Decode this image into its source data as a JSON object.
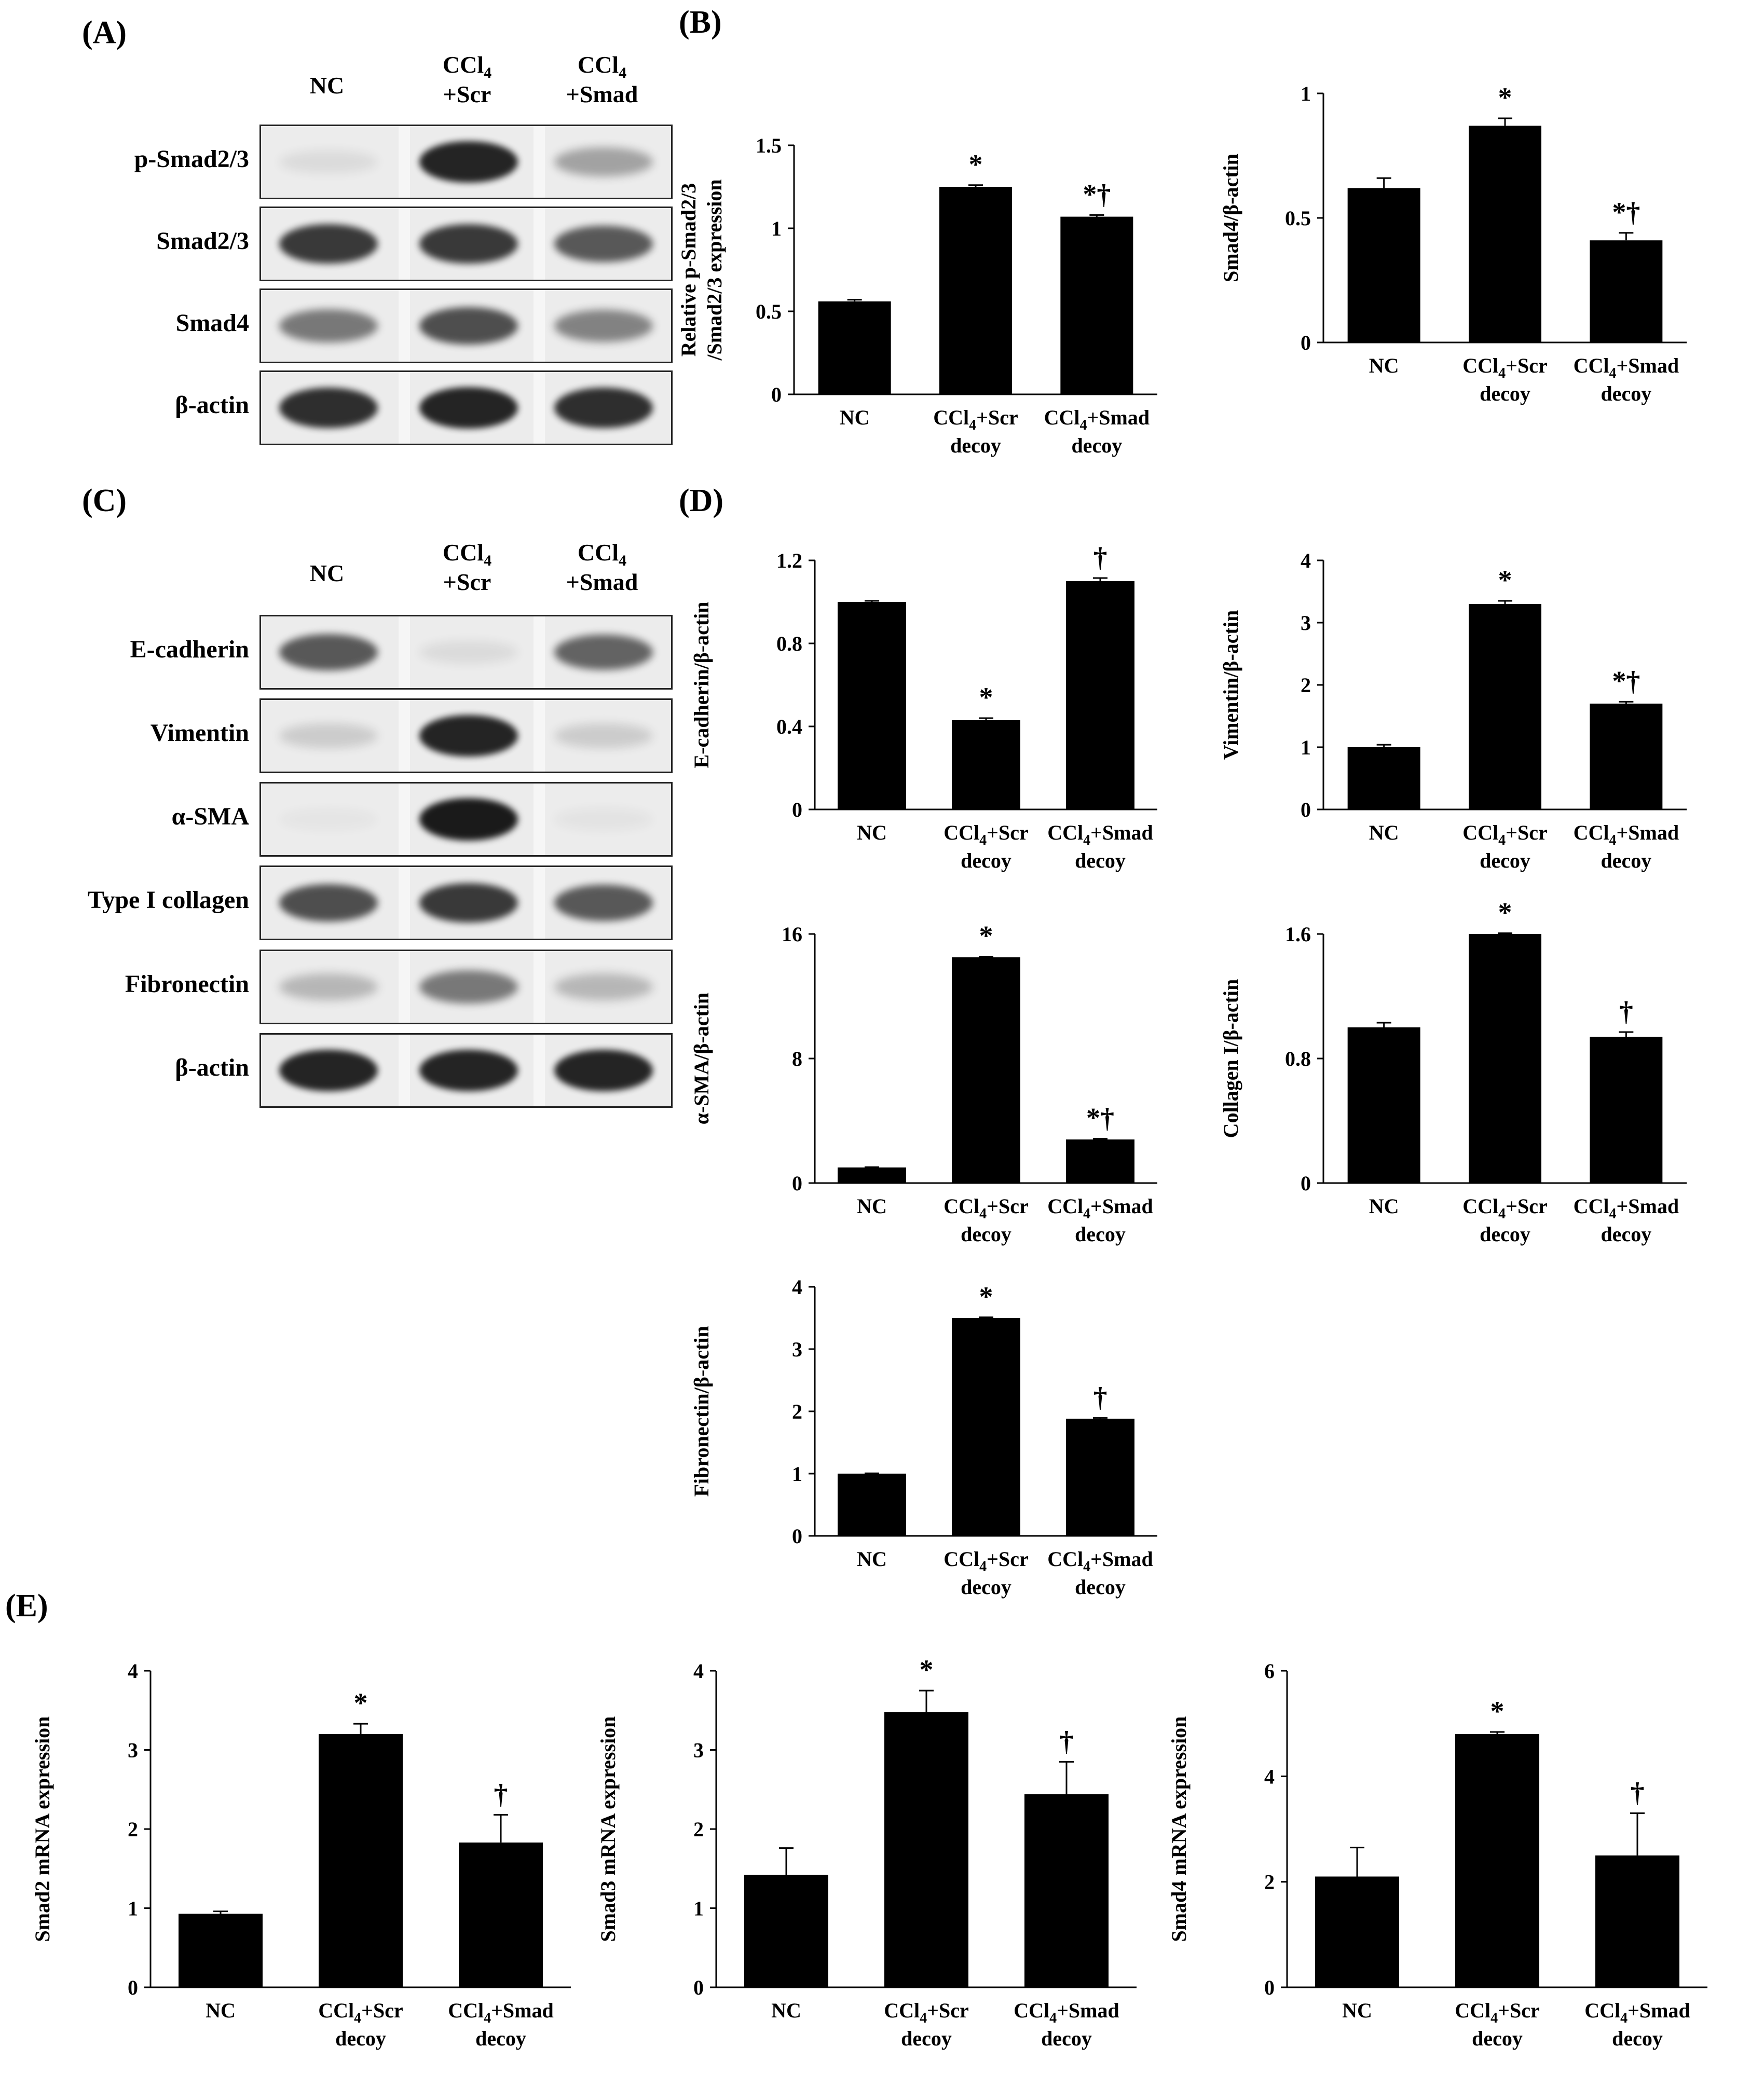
{
  "panels": {
    "A": "(A)",
    "B": "(B)",
    "C": "(C)",
    "D": "(D)",
    "E": "(E)"
  },
  "blotA": {
    "lanes": [
      {
        "main": "NC",
        "sub": "",
        "line2": ""
      },
      {
        "main": "CCl",
        "sub": "4",
        "line2": "+Scr"
      },
      {
        "main": "CCl",
        "sub": "4",
        "line2": "+Smad"
      }
    ],
    "rows": [
      {
        "label": "p-Smad2/3",
        "intensity": [
          0.08,
          0.95,
          0.35
        ]
      },
      {
        "label": "Smad2/3",
        "intensity": [
          0.85,
          0.85,
          0.7
        ]
      },
      {
        "label": "Smad4",
        "intensity": [
          0.55,
          0.75,
          0.5
        ]
      },
      {
        "label": "β-actin",
        "intensity": [
          0.9,
          0.95,
          0.9
        ]
      }
    ]
  },
  "blotC": {
    "lanes": [
      {
        "main": "NC",
        "sub": "",
        "line2": ""
      },
      {
        "main": "CCl",
        "sub": "4",
        "line2": "+Scr"
      },
      {
        "main": "CCl",
        "sub": "4",
        "line2": "+Smad"
      }
    ],
    "rows": [
      {
        "label": "E-cadherin",
        "intensity": [
          0.7,
          0.08,
          0.65
        ]
      },
      {
        "label": "Vimentin",
        "intensity": [
          0.15,
          0.95,
          0.15
        ]
      },
      {
        "label": "α-SMA",
        "intensity": [
          0.03,
          1.0,
          0.04
        ]
      },
      {
        "label": "Type I collagen",
        "intensity": [
          0.75,
          0.85,
          0.7
        ]
      },
      {
        "label": "Fibronectin",
        "intensity": [
          0.25,
          0.55,
          0.25
        ]
      },
      {
        "label": "β-actin",
        "intensity": [
          0.95,
          0.95,
          0.95
        ]
      }
    ]
  },
  "chart_data": [
    {
      "id": "B1",
      "type": "bar",
      "categories": [
        "NC",
        "CCl4+Scr decoy",
        "CCl4+Smad decoy"
      ],
      "values": [
        0.56,
        1.25,
        1.07
      ],
      "errors": [
        0.01,
        0.01,
        0.01
      ],
      "annotations": [
        "",
        "*",
        "*†"
      ],
      "ylabel_lines": [
        "Relative  p-Smad2/3",
        "/Smad2/3 expression"
      ],
      "ylim": [
        0,
        1.5
      ],
      "ticks": [
        "0",
        "0.5",
        "1",
        "1.5"
      ]
    },
    {
      "id": "B2",
      "type": "bar",
      "categories": [
        "NC",
        "CCl4+Scr decoy",
        "CCl4+Smad decoy"
      ],
      "values": [
        0.62,
        0.87,
        0.41
      ],
      "errors": [
        0.04,
        0.03,
        0.03
      ],
      "annotations": [
        "",
        "*",
        "*†"
      ],
      "ylabel_lines": [
        "Smad4/β-actin"
      ],
      "ylim": [
        0,
        1
      ],
      "ticks": [
        "0",
        "0.5",
        "1"
      ]
    },
    {
      "id": "D1",
      "type": "bar",
      "categories": [
        "NC",
        "CCl4+Scr decoy",
        "CCl4+Smad decoy"
      ],
      "values": [
        1.0,
        0.43,
        1.1
      ],
      "errors": [
        0.005,
        0.01,
        0.015
      ],
      "annotations": [
        "",
        "*",
        "†"
      ],
      "ylabel_lines": [
        "E-cadherin/β-actin"
      ],
      "ylim": [
        0,
        1.2
      ],
      "ticks": [
        "0",
        "0.4",
        "0.8",
        "1.2"
      ]
    },
    {
      "id": "D2",
      "type": "bar",
      "categories": [
        "NC",
        "CCl4+Scr decoy",
        "CCl4+Smad decoy"
      ],
      "values": [
        1.0,
        3.3,
        1.7
      ],
      "errors": [
        0.04,
        0.05,
        0.03
      ],
      "annotations": [
        "",
        "*",
        "*†"
      ],
      "ylabel_lines": [
        "Vimentin/β-actin"
      ],
      "ylim": [
        0,
        4
      ],
      "ticks": [
        "0",
        "1",
        "2",
        "3",
        "4"
      ]
    },
    {
      "id": "D3",
      "type": "bar",
      "categories": [
        "NC",
        "CCl4+Scr decoy",
        "CCl4+Smad decoy"
      ],
      "values": [
        1.0,
        14.5,
        2.8
      ],
      "errors": [
        0.02,
        0.05,
        0.05
      ],
      "annotations": [
        "",
        "*",
        "*†"
      ],
      "ylabel_lines": [
        "α-SMA/β-actin"
      ],
      "ylim": [
        0,
        16
      ],
      "ticks": [
        "0",
        "8",
        "16"
      ]
    },
    {
      "id": "D4",
      "type": "bar",
      "categories": [
        "NC",
        "CCl4+Scr decoy",
        "CCl4+Smad decoy"
      ],
      "values": [
        1.0,
        1.6,
        0.94
      ],
      "errors": [
        0.03,
        0.005,
        0.03
      ],
      "annotations": [
        "",
        "*",
        "†"
      ],
      "ylabel_lines": [
        "Collagen I/β-actin"
      ],
      "ylim": [
        0,
        1.6
      ],
      "ticks": [
        "0",
        "0.8",
        "1.6"
      ]
    },
    {
      "id": "D5",
      "type": "bar",
      "categories": [
        "NC",
        "CCl4+Scr decoy",
        "CCl4+Smad decoy"
      ],
      "values": [
        1.0,
        3.5,
        1.88
      ],
      "errors": [
        0.005,
        0.01,
        0.015
      ],
      "annotations": [
        "",
        "*",
        "†"
      ],
      "ylabel_lines": [
        "Fibronectin/β-actin"
      ],
      "ylim": [
        0,
        4
      ],
      "ticks": [
        "0",
        "1",
        "2",
        "3",
        "4"
      ]
    },
    {
      "id": "E1",
      "type": "bar",
      "categories": [
        "NC",
        "CCl4+Scr decoy",
        "CCl4+Smad decoy"
      ],
      "values": [
        0.93,
        3.2,
        1.83
      ],
      "errors": [
        0.03,
        0.13,
        0.35
      ],
      "annotations": [
        "",
        "*",
        "†"
      ],
      "ylabel_lines": [
        "Smad2 mRNA expression"
      ],
      "ylim": [
        0,
        4
      ],
      "ticks": [
        "0",
        "1",
        "2",
        "3",
        "4"
      ]
    },
    {
      "id": "E2",
      "type": "bar",
      "categories": [
        "NC",
        "CCl4+Scr decoy",
        "CCl4+Smad decoy"
      ],
      "values": [
        1.42,
        3.48,
        2.44
      ],
      "errors": [
        0.34,
        0.27,
        0.41
      ],
      "annotations": [
        "",
        "*",
        "†"
      ],
      "ylabel_lines": [
        "Smad3 mRNA expression"
      ],
      "ylim": [
        0,
        4
      ],
      "ticks": [
        "0",
        "1",
        "2",
        "3",
        "4"
      ]
    },
    {
      "id": "E3",
      "type": "bar",
      "categories": [
        "NC",
        "CCl4+Scr decoy",
        "CCl4+Smad decoy"
      ],
      "values": [
        2.1,
        4.8,
        2.5
      ],
      "errors": [
        0.55,
        0.04,
        0.8
      ],
      "annotations": [
        "",
        "*",
        "†"
      ],
      "ylabel_lines": [
        "Smad4 mRNA expression"
      ],
      "ylim": [
        0,
        6
      ],
      "ticks": [
        "0",
        "2",
        "4",
        "6"
      ]
    }
  ],
  "xlabels": [
    {
      "main": "NC",
      "sub": "",
      "rest": "",
      "line2": ""
    },
    {
      "main": "CCl",
      "sub": "4",
      "rest": "+Scr",
      "line2": "decoy"
    },
    {
      "main": "CCl",
      "sub": "4",
      "rest": "+Smad",
      "line2": "decoy"
    }
  ]
}
